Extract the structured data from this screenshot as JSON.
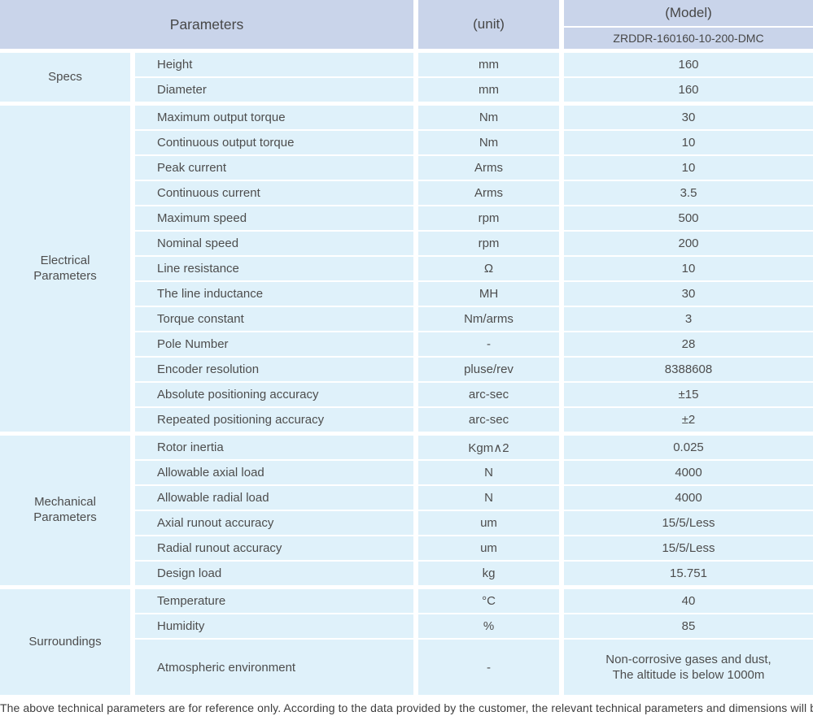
{
  "colors": {
    "header_bg": "#c9d4ea",
    "cell_bg": "#dff1fa",
    "text": "#4d4d4d"
  },
  "table": {
    "header": {
      "parameters_label": "Parameters",
      "unit_label": "(unit)",
      "model_label": "(Model)",
      "model_value": "ZRDDR-160160-10-200-DMC"
    },
    "sections": [
      {
        "group": "Specs",
        "rows": [
          {
            "param": "Height",
            "unit": "mm",
            "value": "160"
          },
          {
            "param": "Diameter",
            "unit": "mm",
            "value": "160"
          }
        ]
      },
      {
        "group": "Electrical\nParameters",
        "rows": [
          {
            "param": "Maximum output torque",
            "unit": "Nm",
            "value": "30"
          },
          {
            "param": "Continuous output torque",
            "unit": "Nm",
            "value": "10"
          },
          {
            "param": "Peak current",
            "unit": "Arms",
            "value": "10"
          },
          {
            "param": "Continuous current",
            "unit": "Arms",
            "value": "3.5"
          },
          {
            "param": "Maximum speed",
            "unit": "rpm",
            "value": "500"
          },
          {
            "param": "Nominal speed",
            "unit": "rpm",
            "value": "200"
          },
          {
            "param": "Line resistance",
            "unit": "Ω",
            "value": "10"
          },
          {
            "param": "The line inductance",
            "unit": "MH",
            "value": "30"
          },
          {
            "param": "Torque constant",
            "unit": "Nm/arms",
            "value": "3"
          },
          {
            "param": "Pole Number",
            "unit": "-",
            "value": "28"
          },
          {
            "param": "Encoder resolution",
            "unit": "pluse/rev",
            "value": "8388608"
          },
          {
            "param": "Absolute positioning accuracy",
            "unit": "arc-sec",
            "value": "±15"
          },
          {
            "param": "Repeated positioning accuracy",
            "unit": "arc-sec",
            "value": "±2"
          }
        ]
      },
      {
        "group": "Mechanical\nParameters",
        "rows": [
          {
            "param": "Rotor inertia",
            "unit": "Kgm∧2",
            "value": "0.025"
          },
          {
            "param": "Allowable axial load",
            "unit": "N",
            "value": "4000"
          },
          {
            "param": "Allowable radial load",
            "unit": "N",
            "value": "4000"
          },
          {
            "param": "Axial runout accuracy",
            "unit": "um",
            "value": "15/5/Less"
          },
          {
            "param": "Radial runout accuracy",
            "unit": "um",
            "value": "15/5/Less"
          },
          {
            "param": "Design load",
            "unit": "kg",
            "value": "15.751"
          }
        ]
      },
      {
        "group": "Surroundings",
        "rows": [
          {
            "param": "Temperature",
            "unit": "°C",
            "value": "40"
          },
          {
            "param": "Humidity",
            "unit": "%",
            "value": "85"
          },
          {
            "param": "Atmospheric environment",
            "unit": "-",
            "value": "Non-corrosive gases and dust,\nThe altitude is below 1000m"
          }
        ]
      }
    ],
    "footer": "The above technical parameters are for reference only. According to the data provided by the customer, the relevant technical parameters and dimensions will be issued."
  }
}
